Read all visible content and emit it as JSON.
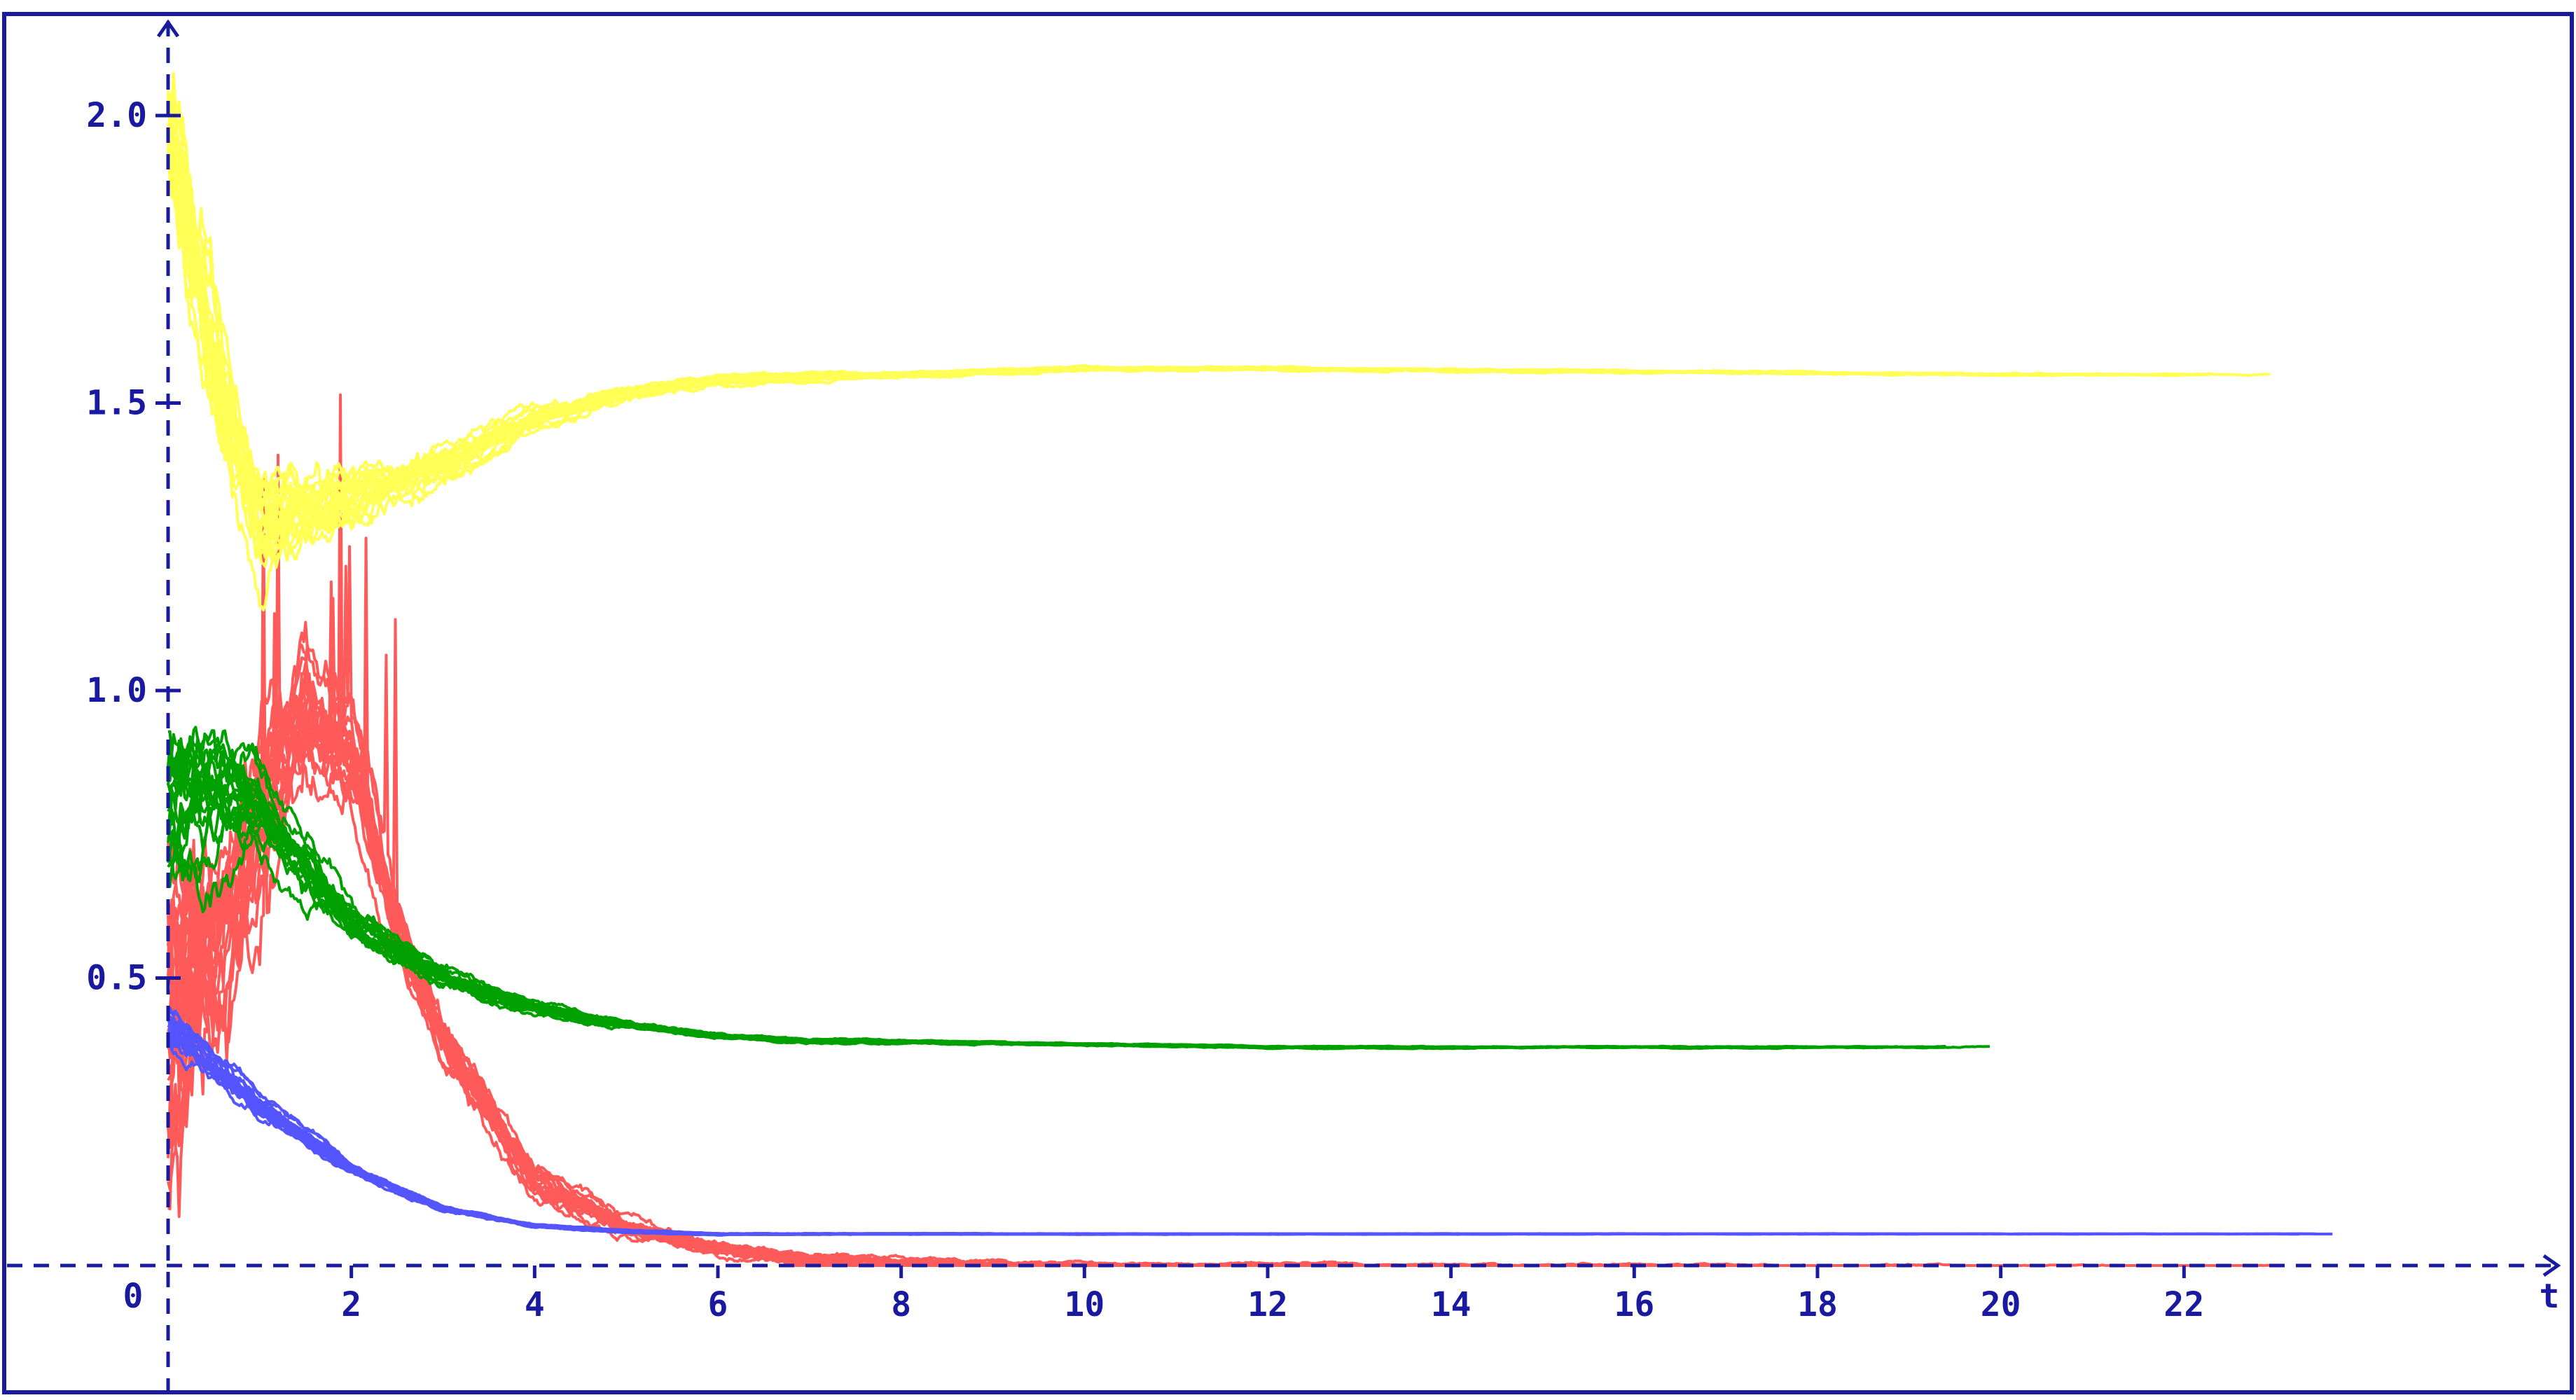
{
  "chart_data": {
    "type": "line",
    "title": "",
    "xlabel": "t",
    "ylabel": "",
    "xlim": [
      -0.5,
      24
    ],
    "ylim": [
      -0.22,
      2.18
    ],
    "origin_label": "0",
    "x_ticks": [
      2,
      4,
      6,
      8,
      10,
      12,
      14,
      16,
      18,
      20,
      22
    ],
    "x_tick_labels": [
      "2",
      "4",
      "6",
      "8",
      "10",
      "12",
      "14",
      "16",
      "18",
      "20",
      "22"
    ],
    "y_ticks": [
      0.5,
      1.0,
      1.5,
      2.0
    ],
    "y_tick_labels": [
      "0.5",
      "1.0",
      "1.5",
      "2.0"
    ],
    "grid": false,
    "legend": "none",
    "trajectories_per_group": 20,
    "series": [
      {
        "color": "#ff5a5a",
        "start_range": [
          0.2,
          0.6
        ],
        "x": [
          0,
          0.5,
          1,
          1.5,
          2,
          2.5,
          3,
          4,
          5,
          6,
          7,
          8,
          9,
          24
        ],
        "values": [
          0.4,
          0.5,
          0.8,
          1.0,
          0.9,
          0.6,
          0.4,
          0.15,
          0.07,
          0.03,
          0.01,
          0.005,
          0.0,
          0.0
        ]
      },
      {
        "color": "#ffff55",
        "start_range": [
          2.0,
          2.0
        ],
        "x": [
          0,
          0.5,
          1,
          2,
          3,
          4,
          5,
          6,
          8,
          10,
          12,
          16,
          20,
          24
        ],
        "values": [
          2.0,
          1.6,
          1.3,
          1.35,
          1.4,
          1.48,
          1.52,
          1.54,
          1.55,
          1.56,
          1.56,
          1.555,
          1.55,
          1.55
        ]
      },
      {
        "color": "#00a000",
        "start_range": [
          0.7,
          0.9
        ],
        "x": [
          0,
          0.5,
          1,
          2,
          3,
          4,
          5,
          6,
          7,
          8,
          10,
          12,
          16,
          20,
          24
        ],
        "values": [
          0.8,
          0.85,
          0.8,
          0.6,
          0.5,
          0.45,
          0.42,
          0.4,
          0.39,
          0.39,
          0.385,
          0.38,
          0.38,
          0.38,
          0.38
        ]
      },
      {
        "color": "#5555ff",
        "start_range": [
          0.38,
          0.45
        ],
        "x": [
          0,
          1,
          2,
          3,
          4,
          5,
          6,
          8,
          10,
          12,
          16,
          20,
          24
        ],
        "values": [
          0.42,
          0.28,
          0.17,
          0.1,
          0.07,
          0.06,
          0.055,
          0.055,
          0.055,
          0.055,
          0.055,
          0.055,
          0.055
        ]
      }
    ],
    "axis_color": "#1a1aa0",
    "frame_color": "#1a1aa0"
  }
}
